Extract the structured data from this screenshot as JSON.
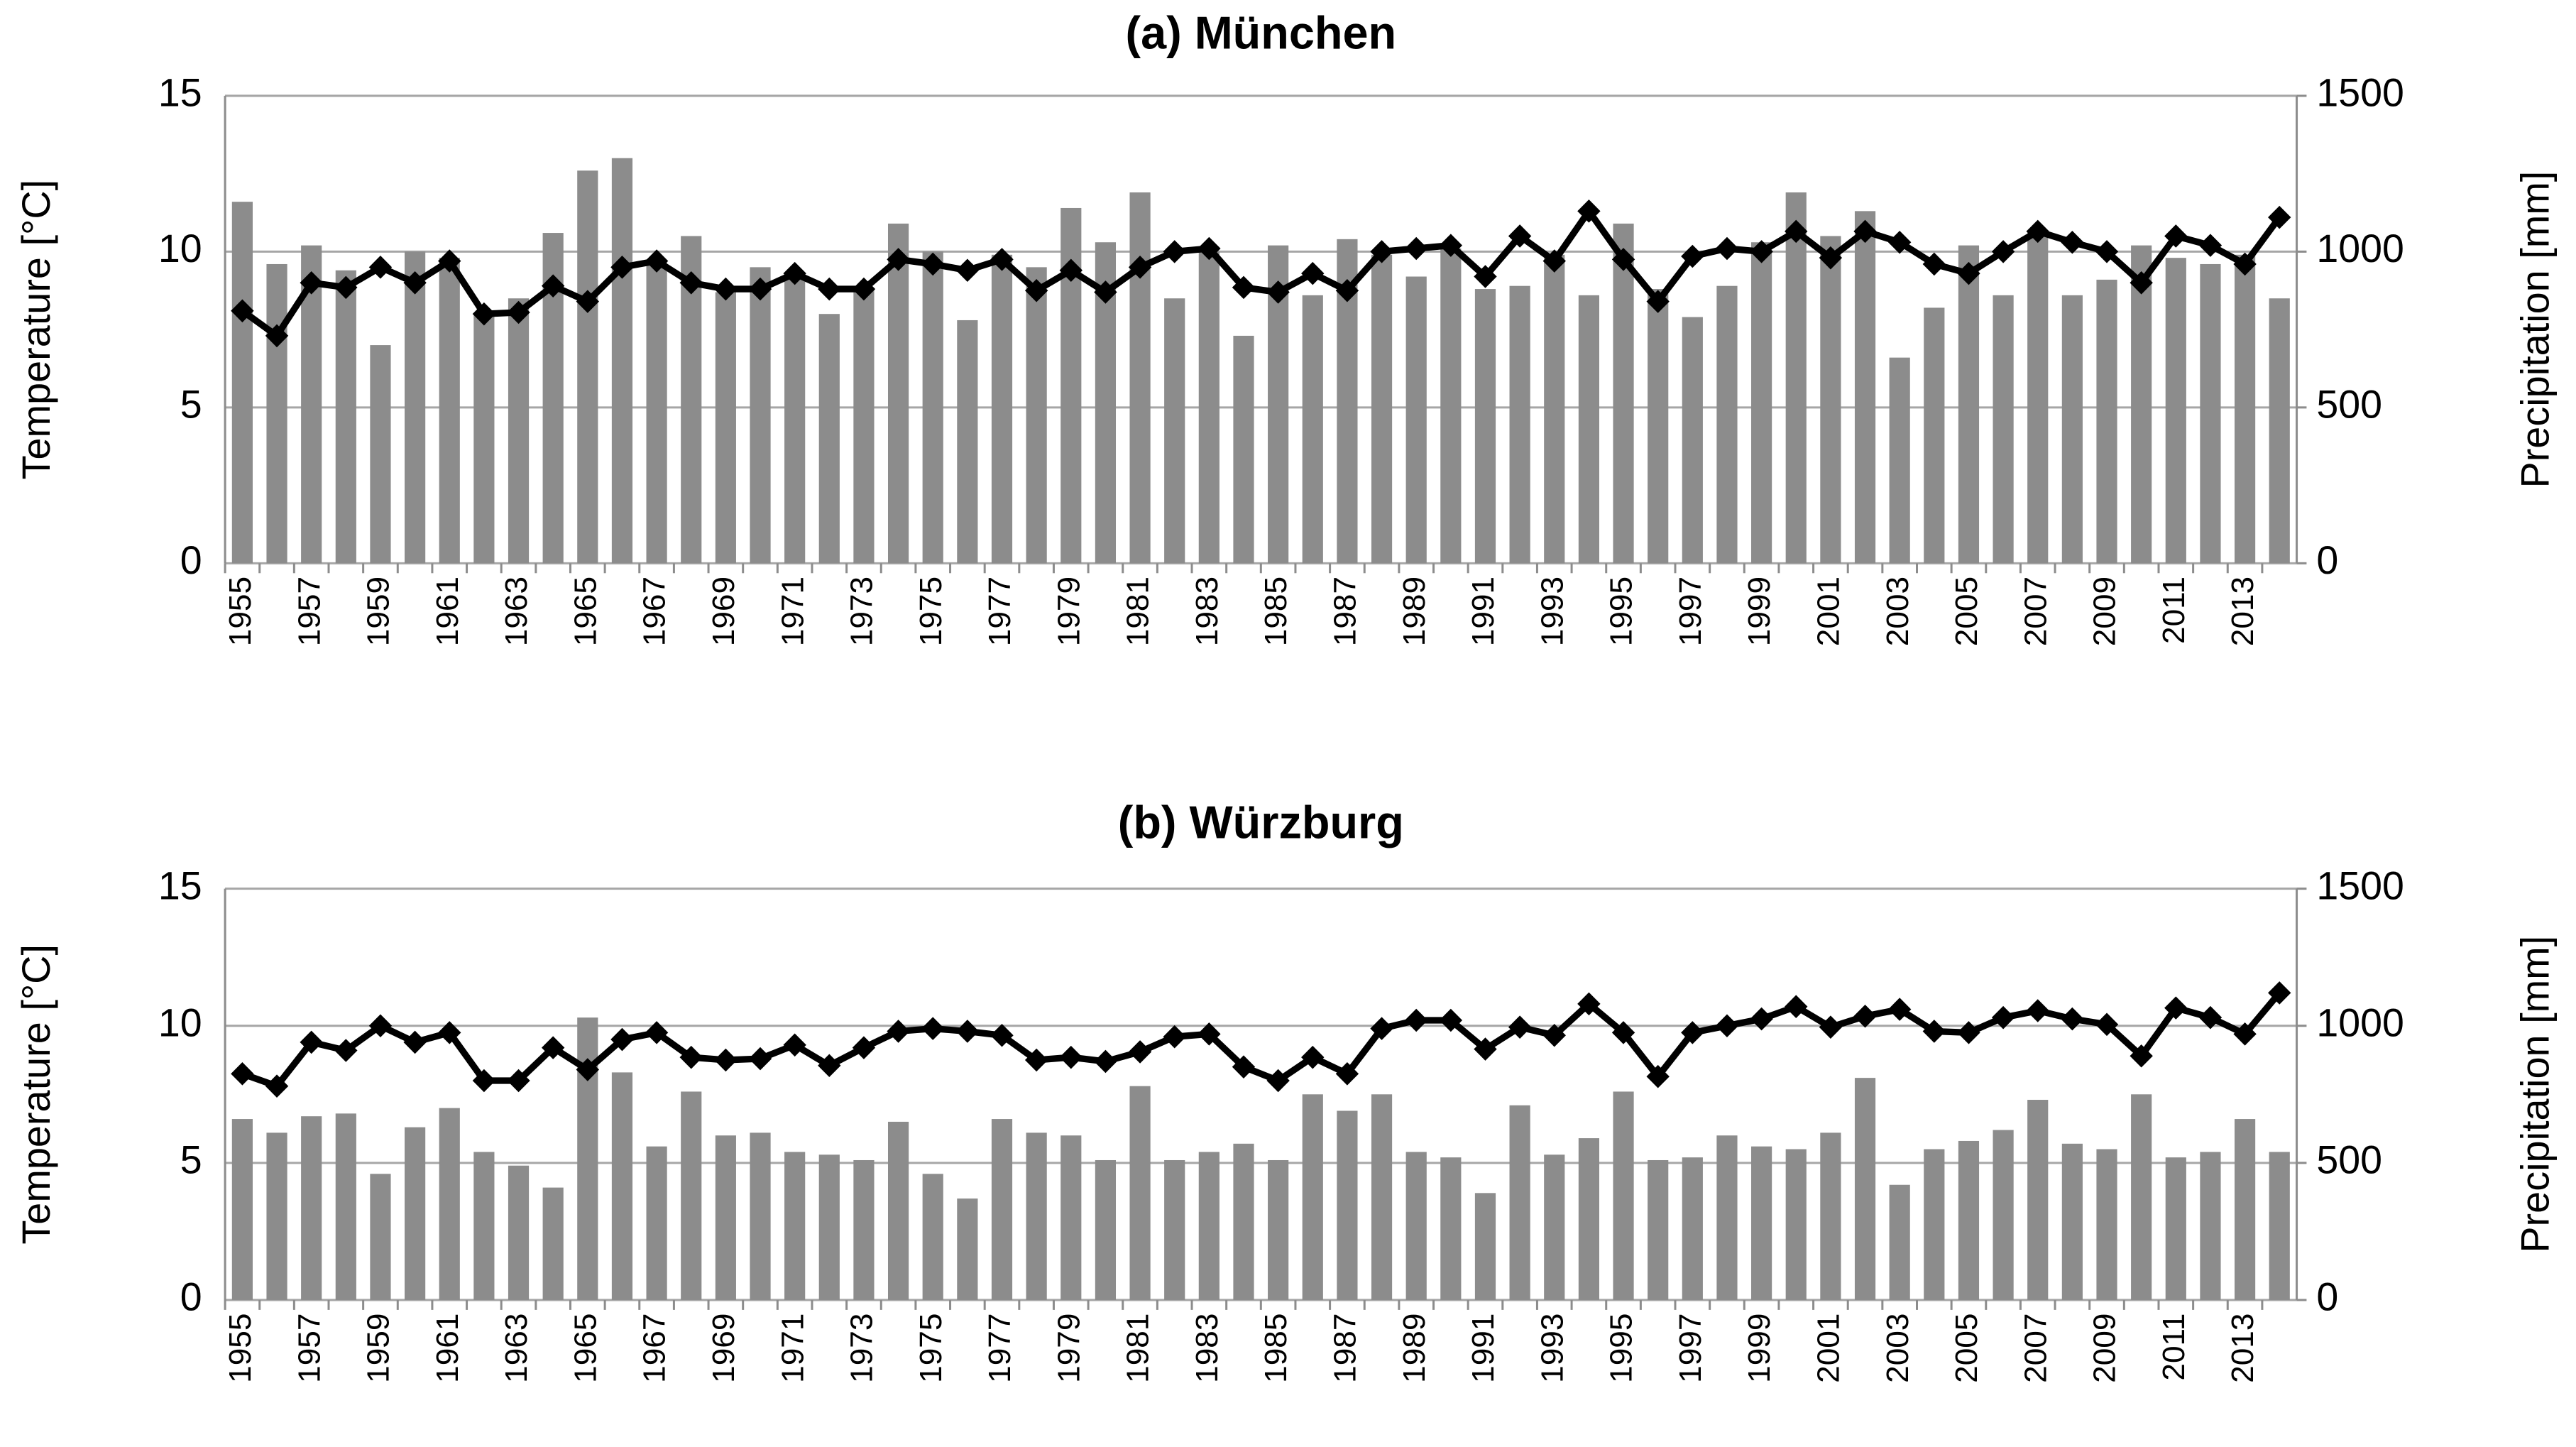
{
  "chart_data": [
    {
      "type": "combo",
      "title": "(a) München",
      "ylabel": "Temperature [°C]",
      "y2label": "Precipitation [mm]",
      "categories": [
        "1955",
        null,
        "1957",
        null,
        "1959",
        null,
        "1961",
        null,
        "1963",
        null,
        "1965",
        null,
        "1967",
        null,
        "1969",
        null,
        "1971",
        null,
        "1973",
        null,
        "1975",
        null,
        "1977",
        null,
        "1979",
        null,
        "1981",
        null,
        "1983",
        null,
        "1985",
        null,
        "1987",
        null,
        "1989",
        null,
        "1991",
        null,
        "1993",
        null,
        "1995",
        null,
        "1997",
        null,
        "1999",
        null,
        "2001",
        null,
        "2003",
        null,
        "2005",
        null,
        "2007",
        null,
        "2009",
        null,
        "2011",
        null,
        "2013",
        null
      ],
      "series": [
        {
          "kind": "bar",
          "axis": "y2",
          "color": "#8c8c8c",
          "values": [
            1160,
            960,
            1020,
            940,
            700,
            1000,
            980,
            800,
            850,
            1060,
            1260,
            1300,
            970,
            1050,
            870,
            950,
            930,
            800,
            880,
            1090,
            1000,
            780,
            990,
            950,
            1140,
            1030,
            1190,
            850,
            1000,
            730,
            1020,
            860,
            1040,
            990,
            920,
            1010,
            880,
            890,
            990,
            860,
            1090,
            880,
            790,
            890,
            1030,
            1190,
            1050,
            1130,
            660,
            820,
            1020,
            860,
            1060,
            860,
            910,
            1020,
            980,
            960,
            990,
            850
          ]
        },
        {
          "kind": "line",
          "color": "#000000",
          "values": [
            8.1,
            7.3,
            9.0,
            8.85,
            9.5,
            9.0,
            9.7,
            8.0,
            8.05,
            8.9,
            8.4,
            9.5,
            9.7,
            9.0,
            8.8,
            8.8,
            9.3,
            8.8,
            8.8,
            9.75,
            9.6,
            9.4,
            9.75,
            8.75,
            9.4,
            8.7,
            9.5,
            10.0,
            10.1,
            8.85,
            8.7,
            9.3,
            8.75,
            10.0,
            10.1,
            10.2,
            9.2,
            10.5,
            9.7,
            11.3,
            9.75,
            8.4,
            9.85,
            10.1,
            10.0,
            10.65,
            9.8,
            10.65,
            10.3,
            9.6,
            9.3,
            10.0,
            10.65,
            10.3,
            10.0,
            9.0,
            10.5,
            10.2,
            9.6,
            11.1
          ]
        }
      ],
      "ylim": [
        0,
        15
      ],
      "yticks": [
        0,
        5,
        10,
        15
      ],
      "y2lim": [
        0,
        1500
      ],
      "y2ticks": [
        0,
        500,
        1000,
        1500
      ],
      "grid": true
    },
    {
      "type": "combo",
      "title": "(b) Würzburg",
      "ylabel": "Temperature [°C]",
      "y2label": "Precipitation [mm]",
      "categories": [
        "1955",
        null,
        "1957",
        null,
        "1959",
        null,
        "1961",
        null,
        "1963",
        null,
        "1965",
        null,
        "1967",
        null,
        "1969",
        null,
        "1971",
        null,
        "1973",
        null,
        "1975",
        null,
        "1977",
        null,
        "1979",
        null,
        "1981",
        null,
        "1983",
        null,
        "1985",
        null,
        "1987",
        null,
        "1989",
        null,
        "1991",
        null,
        "1993",
        null,
        "1995",
        null,
        "1997",
        null,
        "1999",
        null,
        "2001",
        null,
        "2003",
        null,
        "2005",
        null,
        "2007",
        null,
        "2009",
        null,
        "2011",
        null,
        "2013",
        null
      ],
      "series": [
        {
          "kind": "bar",
          "axis": "y2",
          "color": "#8c8c8c",
          "values": [
            660,
            610,
            670,
            680,
            460,
            630,
            700,
            540,
            490,
            410,
            1030,
            830,
            560,
            760,
            600,
            610,
            540,
            530,
            510,
            650,
            460,
            370,
            660,
            610,
            600,
            510,
            780,
            510,
            540,
            570,
            510,
            750,
            690,
            750,
            540,
            520,
            390,
            710,
            530,
            590,
            760,
            510,
            520,
            600,
            560,
            550,
            610,
            810,
            420,
            550,
            580,
            620,
            730,
            570,
            550,
            750,
            520,
            540,
            660,
            540
          ]
        },
        {
          "kind": "line",
          "color": "#000000",
          "values": [
            8.25,
            7.8,
            9.4,
            9.1,
            10.0,
            9.4,
            9.75,
            8.0,
            8.0,
            9.2,
            8.4,
            9.5,
            9.75,
            8.85,
            8.75,
            8.8,
            9.3,
            8.55,
            9.2,
            9.8,
            9.9,
            9.8,
            9.65,
            8.75,
            8.85,
            8.7,
            9.05,
            9.6,
            9.7,
            8.5,
            8.0,
            8.85,
            8.25,
            9.9,
            10.2,
            10.2,
            9.15,
            9.95,
            9.65,
            10.8,
            9.75,
            8.15,
            9.75,
            10.0,
            10.25,
            10.7,
            9.95,
            10.35,
            10.6,
            9.8,
            9.75,
            10.3,
            10.55,
            10.25,
            10.05,
            8.9,
            10.65,
            10.3,
            9.7,
            11.2
          ]
        }
      ],
      "ylim": [
        0,
        15
      ],
      "yticks": [
        0,
        5,
        10,
        15
      ],
      "y2lim": [
        0,
        1500
      ],
      "y2ticks": [
        0,
        500,
        1000,
        1500
      ],
      "grid": true
    }
  ]
}
